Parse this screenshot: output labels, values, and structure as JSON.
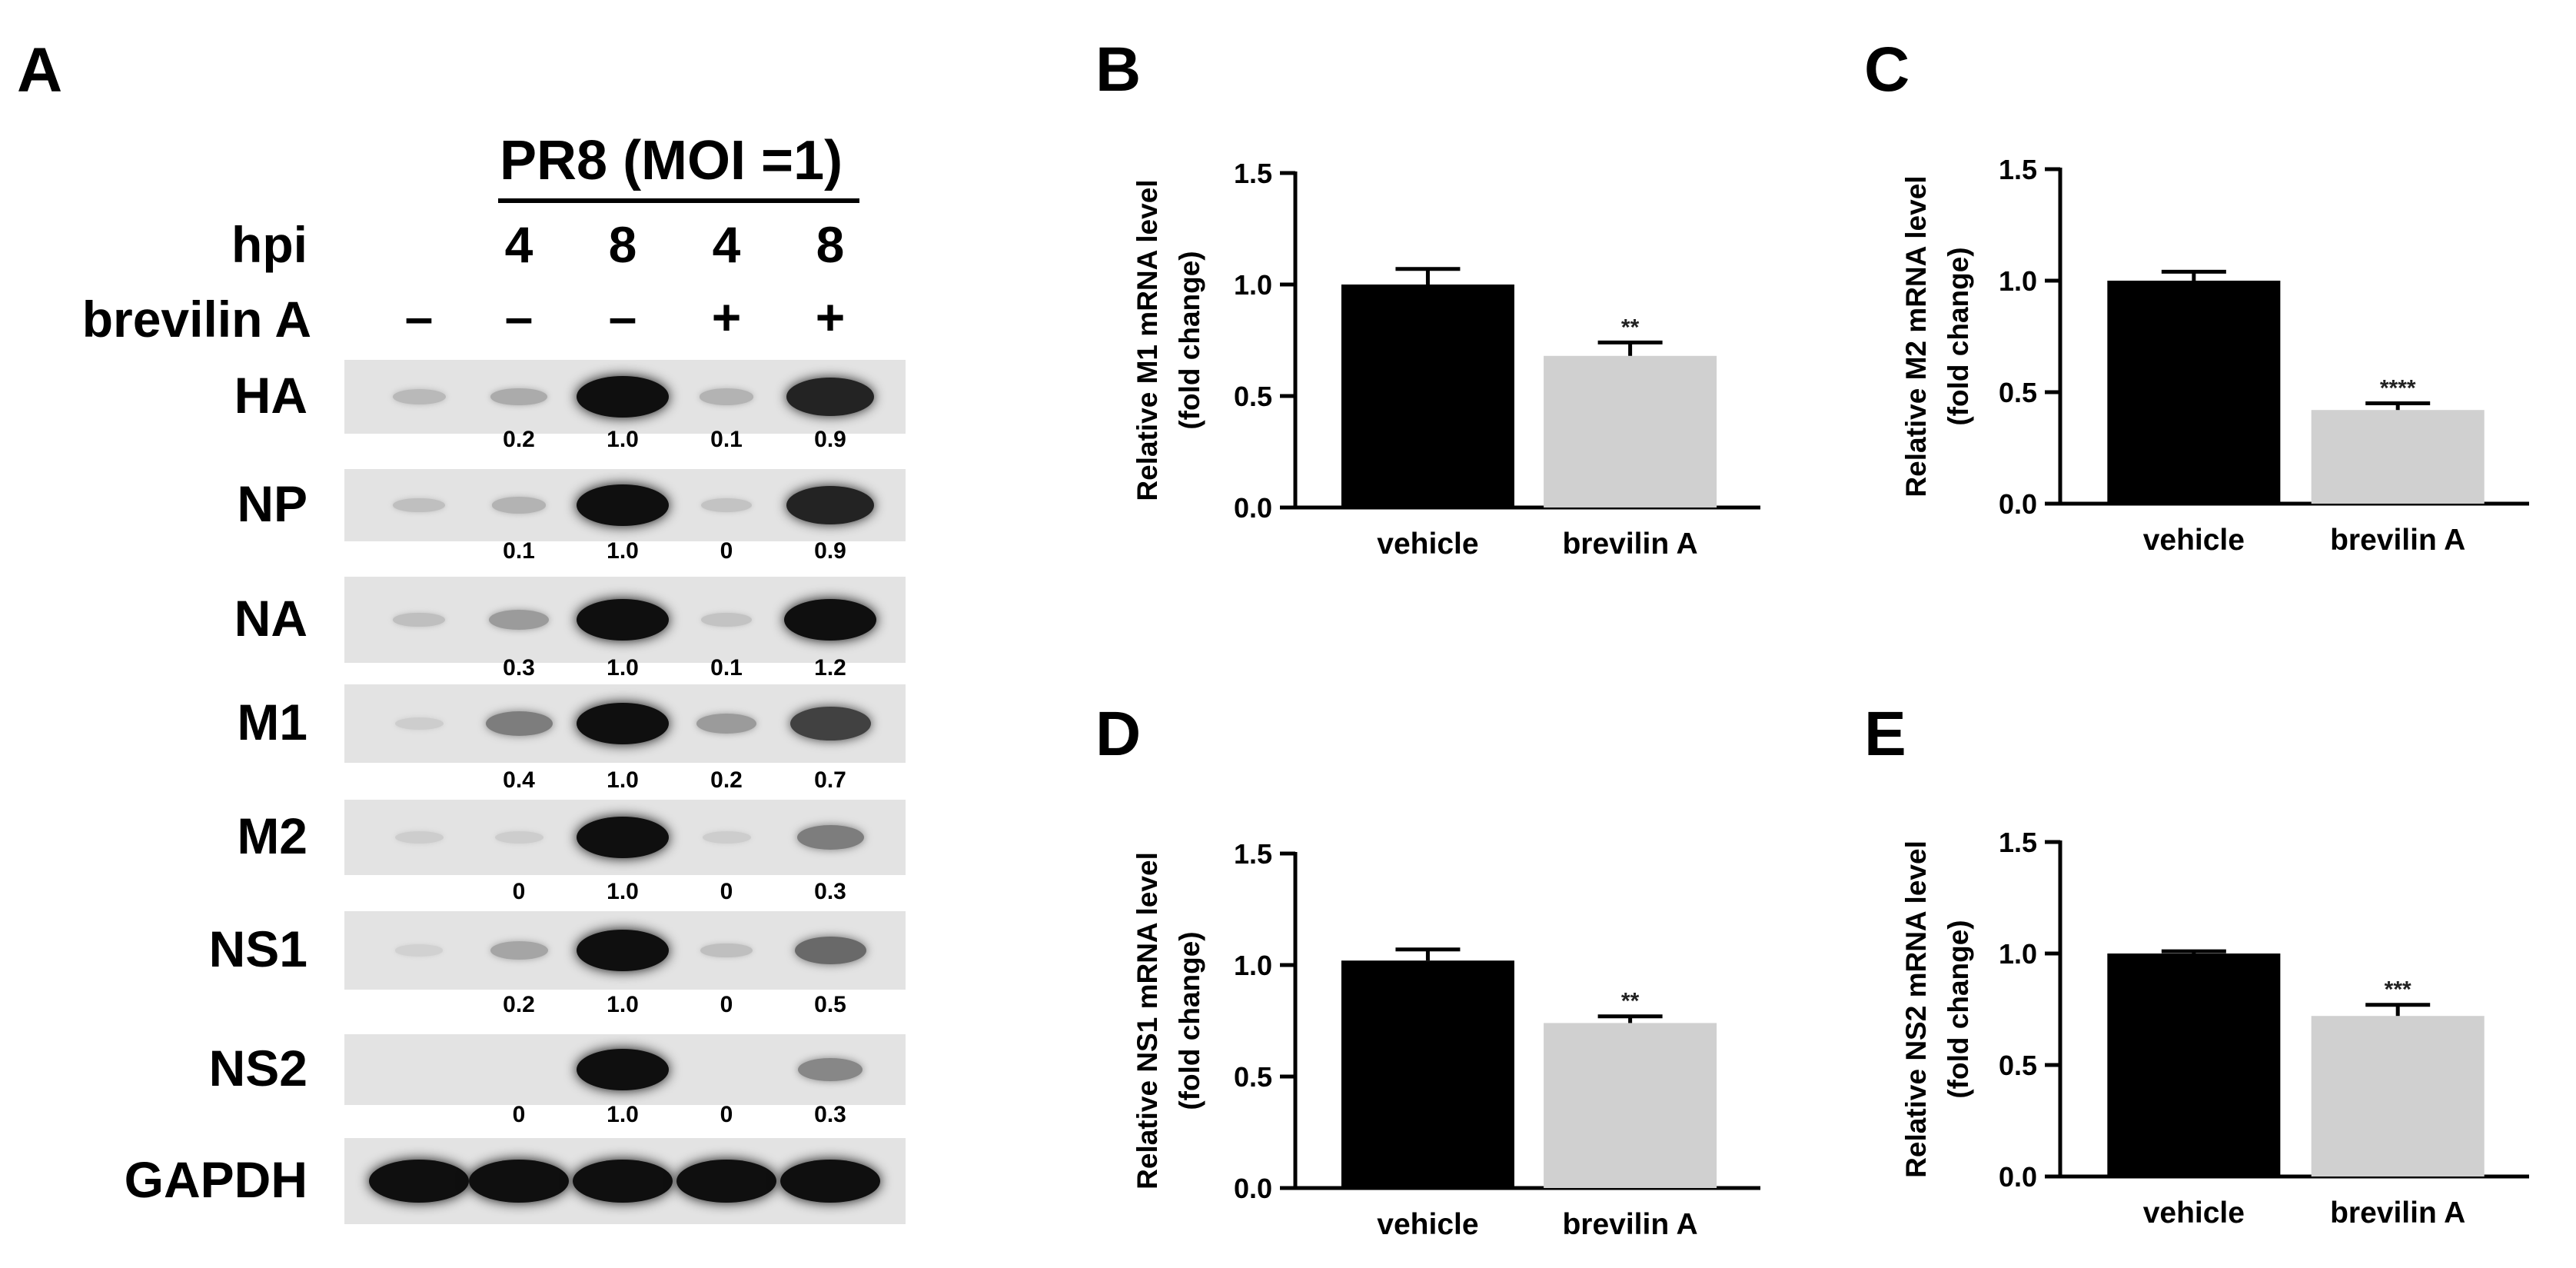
{
  "panel_a": {
    "letter": "A",
    "title": "PR8 (MOI =1)",
    "hpi_label": "hpi",
    "hpi_values": [
      "4",
      "8",
      "4",
      "8"
    ],
    "treatment_label": "brevilin A",
    "treatment_symbols": [
      "–",
      "–",
      "–",
      "+",
      "+"
    ],
    "lane_count": 5,
    "rows": [
      {
        "label": "HA",
        "band_intensity": [
          0.15,
          0.22,
          1.0,
          0.18,
          0.9
        ],
        "quant": [
          "0.2",
          "1.0",
          "0.1",
          "0.9"
        ]
      },
      {
        "label": "NP",
        "band_intensity": [
          0.12,
          0.18,
          1.0,
          0.1,
          0.9
        ],
        "quant": [
          "0.1",
          "1.0",
          "0",
          "0.9"
        ]
      },
      {
        "label": "NA",
        "band_intensity": [
          0.12,
          0.3,
          1.0,
          0.1,
          1.0
        ],
        "quant": [
          "0.3",
          "1.0",
          "0.1",
          "1.2"
        ]
      },
      {
        "label": "M1",
        "band_intensity": [
          0.05,
          0.45,
          1.0,
          0.3,
          0.75
        ],
        "quant": [
          "0.4",
          "1.0",
          "0.2",
          "0.7"
        ]
      },
      {
        "label": "M2",
        "band_intensity": [
          0.05,
          0.05,
          1.0,
          0.05,
          0.45
        ],
        "quant": [
          "0",
          "1.0",
          "0",
          "0.3"
        ]
      },
      {
        "label": "NS1",
        "band_intensity": [
          0.03,
          0.25,
          1.0,
          0.12,
          0.55
        ],
        "quant": [
          "0.2",
          "1.0",
          "0",
          "0.5"
        ]
      },
      {
        "label": "NS2",
        "band_intensity": [
          0.0,
          0.0,
          1.0,
          0.0,
          0.4
        ],
        "quant": [
          "0",
          "1.0",
          "0",
          "0.3"
        ]
      },
      {
        "label": "GAPDH",
        "band_intensity": [
          1.0,
          1.0,
          1.0,
          1.0,
          1.0
        ],
        "quant": []
      }
    ]
  },
  "chart_data": [
    {
      "panel": "B",
      "type": "bar",
      "categories": [
        "vehicle",
        "brevilin A"
      ],
      "values": [
        1.0,
        0.68
      ],
      "errors": [
        0.07,
        0.06
      ],
      "significance": [
        "",
        "**"
      ],
      "ylabel": [
        "Relative M1 mRNA level",
        "(fold change)"
      ],
      "ylim": [
        0,
        1.5
      ],
      "yticks": [
        "0.0",
        "0.5",
        "1.0",
        "1.5"
      ],
      "colors": [
        "#000000",
        "#d0d0d0"
      ]
    },
    {
      "panel": "C",
      "type": "bar",
      "categories": [
        "vehicle",
        "brevilin A"
      ],
      "values": [
        1.0,
        0.42
      ],
      "errors": [
        0.04,
        0.03
      ],
      "significance": [
        "",
        "****"
      ],
      "ylabel": [
        "Relative M2 mRNA level",
        "(fold change)"
      ],
      "ylim": [
        0,
        1.5
      ],
      "yticks": [
        "0.0",
        "0.5",
        "1.0",
        "1.5"
      ],
      "colors": [
        "#000000",
        "#d0d0d0"
      ]
    },
    {
      "panel": "D",
      "type": "bar",
      "categories": [
        "vehicle",
        "brevilin A"
      ],
      "values": [
        1.02,
        0.74
      ],
      "errors": [
        0.05,
        0.03
      ],
      "significance": [
        "",
        "**"
      ],
      "ylabel": [
        "Relative NS1 mRNA level",
        "(fold change)"
      ],
      "ylim": [
        0,
        1.5
      ],
      "yticks": [
        "0.0",
        "0.5",
        "1.0",
        "1.5"
      ],
      "colors": [
        "#000000",
        "#d0d0d0"
      ]
    },
    {
      "panel": "E",
      "type": "bar",
      "categories": [
        "vehicle",
        "brevilin A"
      ],
      "values": [
        1.0,
        0.72
      ],
      "errors": [
        0.01,
        0.05
      ],
      "significance": [
        "",
        "***"
      ],
      "ylabel": [
        "Relative NS2 mRNA level",
        "(fold change)"
      ],
      "ylim": [
        0,
        1.5
      ],
      "yticks": [
        "0.0",
        "0.5",
        "1.0",
        "1.5"
      ],
      "colors": [
        "#000000",
        "#d0d0d0"
      ]
    }
  ]
}
